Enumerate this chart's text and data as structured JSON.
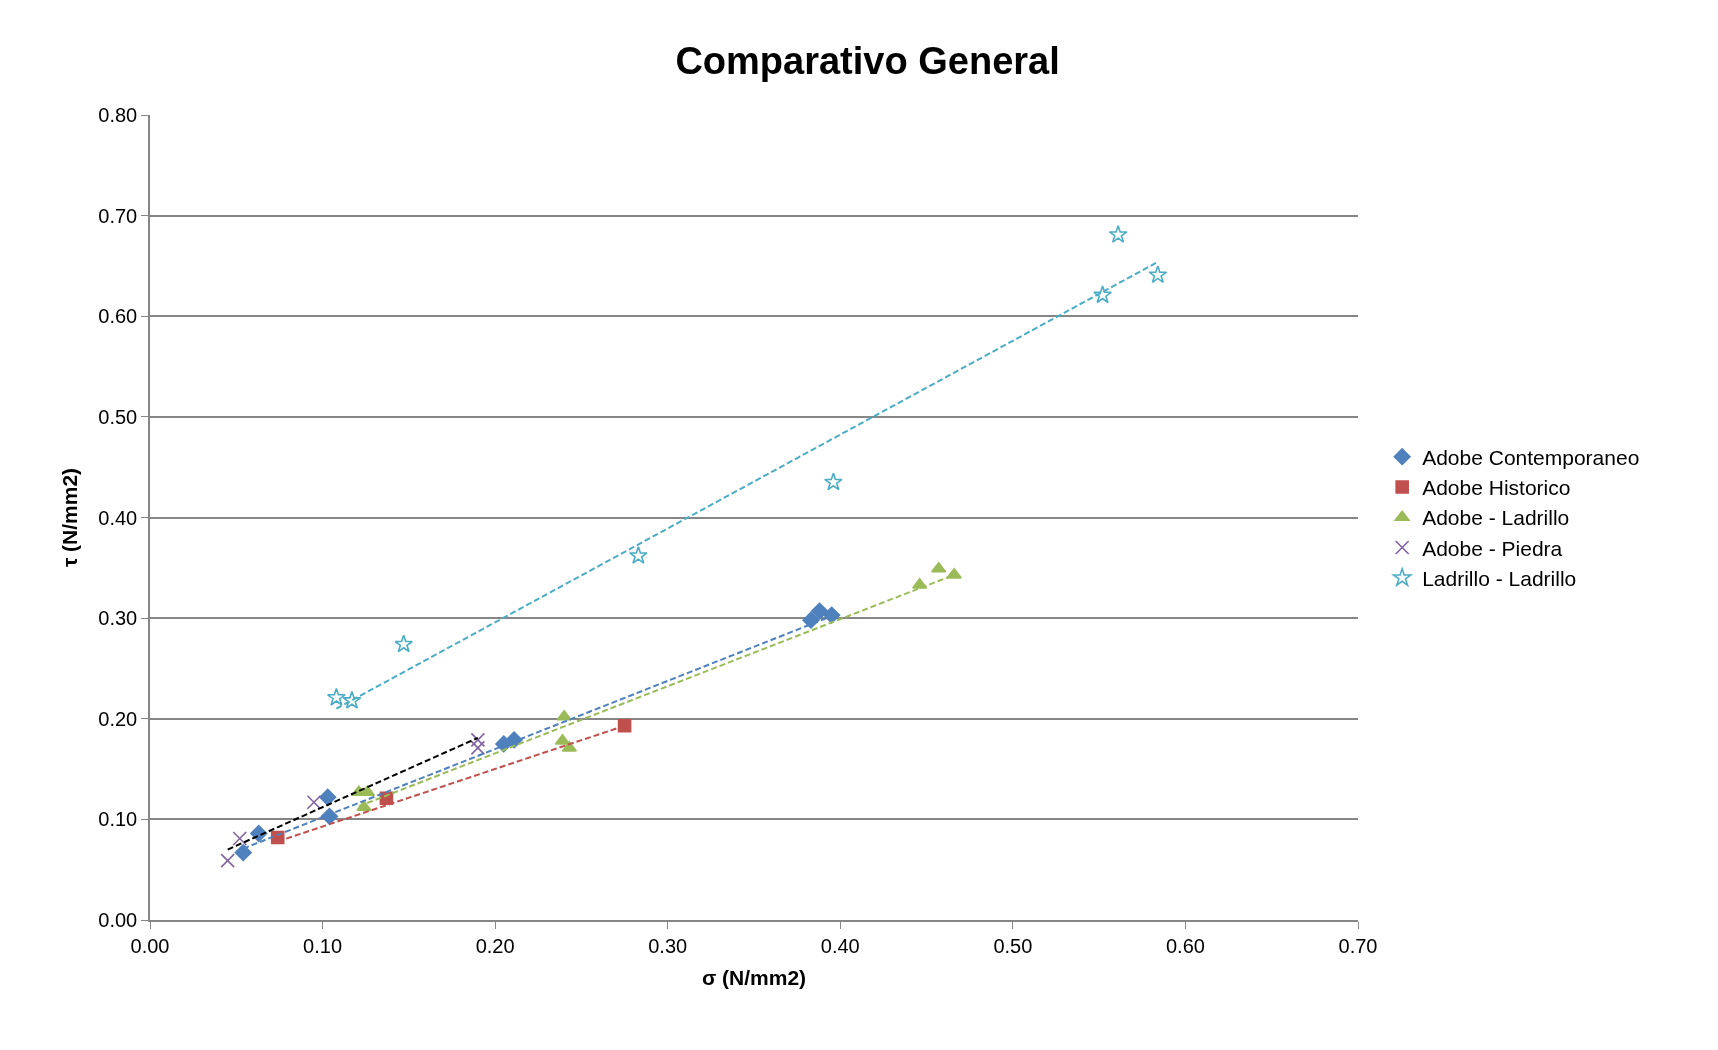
{
  "chart_data": {
    "type": "scatter",
    "title": "Comparativo General",
    "xlabel": "σ (N/mm2)",
    "ylabel": "τ (N/mm2)",
    "xlim": [
      0,
      0.7
    ],
    "xticks": [
      {
        "value": 0,
        "label": "0.00"
      },
      {
        "value": 0.1,
        "label": "0.10"
      },
      {
        "value": 0.2,
        "label": "0.20"
      },
      {
        "value": 0.3,
        "label": "0.30"
      },
      {
        "value": 0.4,
        "label": "0.40"
      },
      {
        "value": 0.5,
        "label": "0.50"
      },
      {
        "value": 0.6,
        "label": "0.60"
      },
      {
        "value": 0.7,
        "label": "0.70"
      }
    ],
    "ylim": [
      0,
      0.8
    ],
    "yticks": [
      {
        "value": 0,
        "label": "0.00"
      },
      {
        "value": 0.1,
        "label": "0.10"
      },
      {
        "value": 0.2,
        "label": "0.20"
      },
      {
        "value": 0.3,
        "label": "0.30"
      },
      {
        "value": 0.4,
        "label": "0.40"
      },
      {
        "value": 0.5,
        "label": "0.50"
      },
      {
        "value": 0.6,
        "label": "0.60"
      },
      {
        "value": 0.7,
        "label": "0.70"
      },
      {
        "value": 0.8,
        "label": "0.80"
      }
    ],
    "grid": "y",
    "legend": "right",
    "series": [
      {
        "name": "Adobe Contemporaneo",
        "color": "#4f81bd",
        "marker": "diamond",
        "x": [
          0.054,
          0.063,
          0.103,
          0.104,
          0.205,
          0.211,
          0.383,
          0.388,
          0.395
        ],
        "values": [
          0.067,
          0.086,
          0.122,
          0.103,
          0.175,
          0.179,
          0.298,
          0.307,
          0.303
        ]
      },
      {
        "name": "Adobe Historico",
        "color": "#c0504d",
        "marker": "square",
        "x": [
          0.074,
          0.137,
          0.275
        ],
        "values": [
          0.082,
          0.121,
          0.193
        ]
      },
      {
        "name": "Adobe - Ladrillo",
        "color": "#9bbb59",
        "marker": "triangle",
        "x": [
          0.121,
          0.126,
          0.124,
          0.24,
          0.239,
          0.243,
          0.446,
          0.457,
          0.466
        ],
        "values": [
          0.127,
          0.127,
          0.112,
          0.202,
          0.178,
          0.171,
          0.333,
          0.349,
          0.343
        ]
      },
      {
        "name": "Adobe - Piedra",
        "color": "#8064a2",
        "marker": "cross",
        "x": [
          0.045,
          0.052,
          0.095,
          0.19,
          0.19
        ],
        "values": [
          0.059,
          0.081,
          0.117,
          0.179,
          0.171
        ]
      },
      {
        "name": "Ladrillo - Ladrillo",
        "color": "#4bacc6",
        "marker": "star",
        "x": [
          0.108,
          0.117,
          0.147,
          0.283,
          0.396,
          0.552,
          0.561,
          0.584
        ],
        "values": [
          0.221,
          0.218,
          0.274,
          0.362,
          0.435,
          0.621,
          0.681,
          0.641
        ]
      },
      {
        "type": "line",
        "color": "#4f81bd",
        "line_style": "dashed",
        "x": [
          0.054,
          0.395
        ],
        "values": [
          0.071,
          0.302
        ]
      },
      {
        "type": "line",
        "color": "#c0504d",
        "line_style": "dashed",
        "x": [
          0.074,
          0.275
        ],
        "values": [
          0.078,
          0.193
        ]
      },
      {
        "type": "line",
        "color": "#9bbb59",
        "line_style": "dashed",
        "x": [
          0.121,
          0.466
        ],
        "values": [
          0.113,
          0.343
        ]
      },
      {
        "type": "line",
        "color": "#000000",
        "line_style": "dashed",
        "x": [
          0.045,
          0.19
        ],
        "values": [
          0.07,
          0.181
        ]
      },
      {
        "type": "line",
        "color": "#4bacc6",
        "line_style": "dashed",
        "x": [
          0.108,
          0.584
        ],
        "values": [
          0.21,
          0.654
        ]
      }
    ]
  }
}
